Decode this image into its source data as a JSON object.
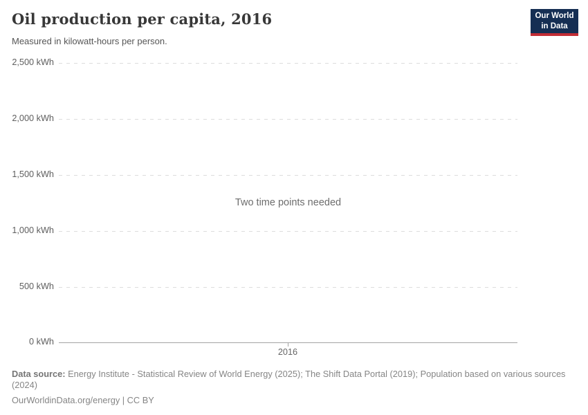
{
  "header": {
    "title": "Oil production per capita, 2016",
    "subtitle": "Measured in kilowatt-hours per person.",
    "logo": {
      "line1": "Our World",
      "line2": "in Data",
      "background_color": "#152e53",
      "accent_color": "#c22d35"
    }
  },
  "chart_data": {
    "type": "line",
    "title": "Oil production per capita, 2016",
    "subtitle": "Measured in kilowatt-hours per person.",
    "series": [],
    "note": "Two time points needed",
    "x": [
      2016
    ],
    "xticks": [
      "2016"
    ],
    "yticks": [
      "2,500 kWh",
      "2,000 kWh",
      "1,500 kWh",
      "1,000 kWh",
      "500 kWh",
      "0 kWh"
    ],
    "ylim": [
      0,
      2500
    ],
    "ylabel": "kWh",
    "xlabel": "",
    "grid": "horizontal-dashed",
    "legend_position": "none",
    "gridline_color": "#dcdcdc",
    "axis_color": "#a3a3a3"
  },
  "footer": {
    "datasource_label": "Data source:",
    "datasource_text": "Energy Institute - Statistical Review of World Energy (2025); The Shift Data Portal (2019); Population based on various sources (2024)",
    "citation": "OurWorldinData.org/energy | CC BY"
  }
}
